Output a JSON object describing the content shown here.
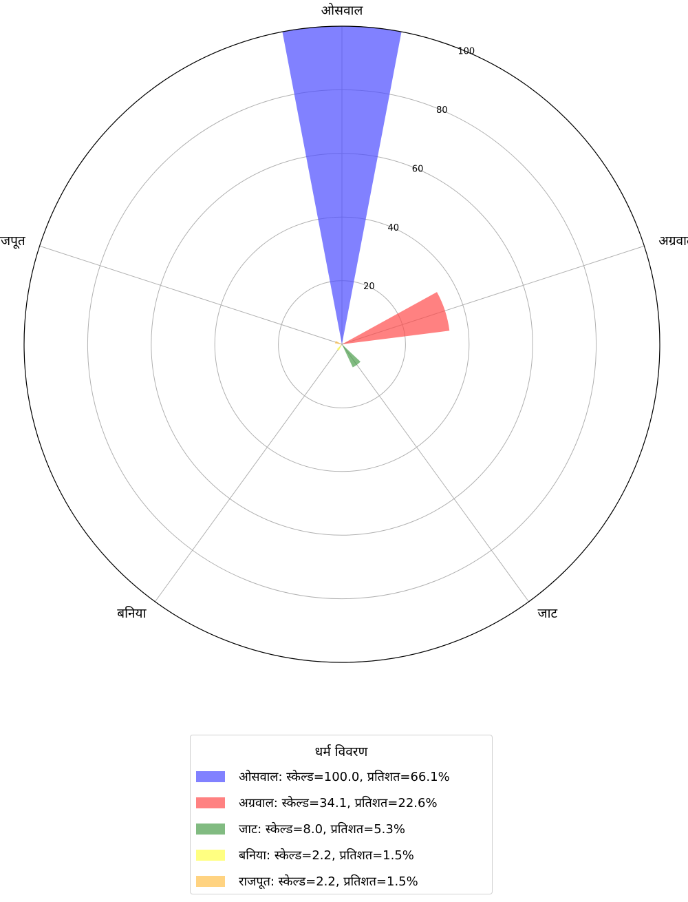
{
  "chart_data": {
    "type": "polar-bar",
    "categories": [
      "ओसवाल",
      "अग्रवाल",
      "जाट",
      "बनिया",
      "राजपूत"
    ],
    "values": [
      100.0,
      34.1,
      8.0,
      2.2,
      2.2
    ],
    "colors": [
      "#4b4bff",
      "#ff4b4b",
      "#4b9e4b",
      "#ffff4b",
      "#ffc04b"
    ],
    "r_ticks": [
      20,
      40,
      60,
      80,
      100
    ],
    "rlim": [
      0,
      100
    ],
    "grid": true,
    "legend": {
      "title": "धर्म विवरण",
      "placement": "bottom-center",
      "entries": [
        "ओसवाल: स्केल्ड=100.0, प्रतिशत=66.1%",
        "अग्रवाल: स्केल्ड=34.1, प्रतिशत=22.6%",
        "जाट: स्केल्ड=8.0, प्रतिशत=5.3%",
        "बनिया: स्केल्ड=2.2, प्रतिशत=1.5%",
        "राजपूत: स्केल्ड=2.2, प्रतिशत=1.5%"
      ]
    }
  }
}
